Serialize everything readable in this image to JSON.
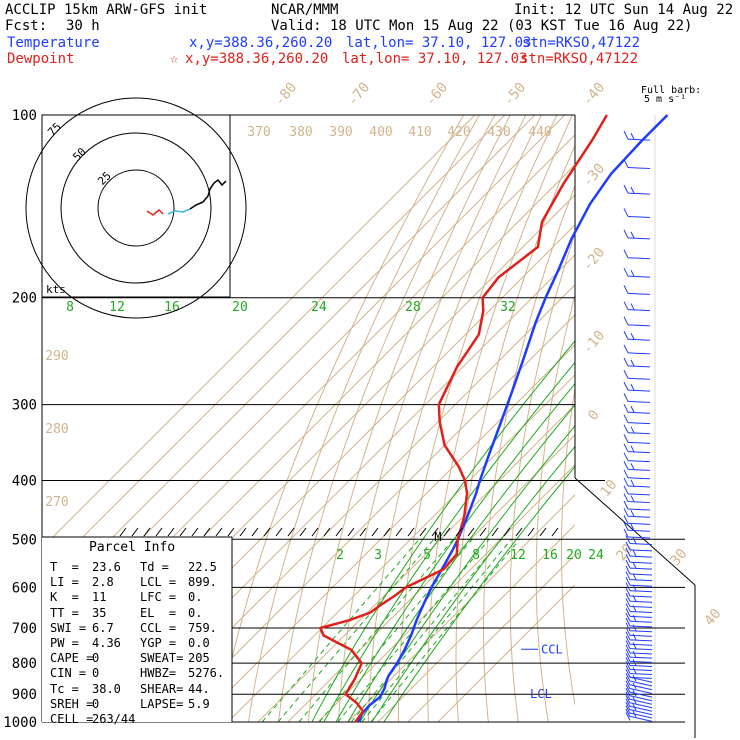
{
  "header": {
    "model": "ACCLIP 15km ARW-GFS init",
    "center": "NCAR/MMM",
    "init": "Init: 12 UTC Sun 14 Aug 22",
    "fcst_label": "Fcst:",
    "fcst_value": "30 h",
    "valid": "Valid: 18 UTC Mon 15 Aug 22 (03 KST Tue 16 Aug 22)"
  },
  "legend": {
    "temperature_label": "Temperature",
    "temperature_xy": "x,y=388.36,260.20",
    "temperature_latlon": "lat,lon= 37.10, 127.03",
    "temperature_stn": "stn=RKSO,47122",
    "dewpoint_label": "Dewpoint",
    "dewpoint_xy": "x,y=388.36,260.20",
    "dewpoint_latlon": "lat,lon= 37.10, 127.03",
    "dewpoint_stn": "stn=RKSO,47122",
    "star": "☆"
  },
  "wind_key": {
    "line1": "Full barb:",
    "line2": "5 m s⁻¹"
  },
  "hodograph": {
    "units": "kts",
    "rings": [
      "75",
      "50",
      "25"
    ]
  },
  "parcel_info": {
    "title": "Parcel Info",
    "rows": [
      [
        "T  =",
        "23.6",
        "Td =",
        "22.5"
      ],
      [
        "LI =",
        "2.8",
        "LCL =",
        "899."
      ],
      [
        "K  =",
        "11",
        "LFC =",
        "0."
      ],
      [
        "TT =",
        "35",
        "EL  =",
        "0."
      ],
      [
        "SWI =",
        "6.7",
        "CCL =",
        "759."
      ],
      [
        "PW =",
        "4.36",
        "YGP =",
        "0.0"
      ],
      [
        "CAPE =",
        "0",
        "SWEAT=",
        "205"
      ],
      [
        "CIN =",
        "0",
        "HWBZ=",
        "5276."
      ],
      [
        "Tc =",
        "38.0",
        "SHEAR=",
        "44."
      ],
      [
        "SREH =",
        "0",
        "LAPSE=",
        "5.9"
      ],
      [
        "CELL =",
        "263/44",
        "",
        ""
      ]
    ]
  },
  "chart_data": {
    "type": "line",
    "title": "",
    "y_axis": "pressure (hPa)",
    "pressure_ticks": [
      100,
      200,
      300,
      400,
      500,
      600,
      700,
      800,
      900,
      1000
    ],
    "isotherm_labels": [
      "-80",
      "-70",
      "-60",
      "-50",
      "-40",
      "-30",
      "-20",
      "-10",
      "0",
      "10",
      "20",
      "30",
      "40"
    ],
    "theta_labels": [
      "370",
      "380",
      "390",
      "400",
      "410",
      "420",
      "430",
      "440",
      "290",
      "280",
      "270"
    ],
    "moist_adiabat_labels": [
      "8",
      "12",
      "16",
      "20",
      "24",
      "28",
      "32"
    ],
    "mixing_ratio_labels": [
      "2",
      "3",
      "5",
      "8",
      "12",
      "16",
      "20",
      "24"
    ],
    "annotations": [
      "CCL",
      "LCL",
      "M"
    ],
    "series": [
      {
        "name": "Temperature",
        "color": "#1e3cff",
        "pressure": [
          1000,
          970,
          940,
          910,
          880,
          860,
          840,
          800,
          760,
          720,
          680,
          640,
          600,
          560,
          520,
          500,
          460,
          420,
          400,
          360,
          320,
          280,
          250,
          220,
          200,
          180,
          160,
          140,
          125,
          110,
          100
        ],
        "value": [
          23.6,
          22.0,
          21.6,
          22.4,
          21.0,
          19.5,
          18.2,
          16.8,
          14.8,
          12.2,
          9.0,
          6.0,
          3.0,
          0.4,
          -2.5,
          -4.2,
          -8.5,
          -13.5,
          -16.5,
          -22.5,
          -29.0,
          -36.5,
          -43.0,
          -50.5,
          -55.5,
          -60.5,
          -66.5,
          -72.0,
          -75.0,
          -75.8,
          -75.8
        ]
      },
      {
        "name": "Dewpoint",
        "color": "#e0201a",
        "pressure": [
          1000,
          960,
          930,
          900,
          850,
          800,
          760,
          740,
          720,
          700,
          680,
          660,
          640,
          620,
          600,
          560,
          530,
          500,
          460,
          420,
          400,
          380,
          350,
          320,
          300,
          260,
          230,
          210,
          200,
          185,
          165,
          150,
          130,
          110,
          100
        ],
        "value": [
          22.5,
          21.5,
          16.5,
          10.0,
          8.0,
          5.0,
          -3.0,
          -10.0,
          -17.0,
          -20.5,
          -13.5,
          -9.0,
          -8.0,
          -6.5,
          -5.5,
          1.0,
          0.5,
          -4.3,
          -9.5,
          -16.5,
          -21.5,
          -28.0,
          -40.0,
          -49.5,
          -55.5,
          -62.0,
          -65.5,
          -72.0,
          -76.5,
          -78.0,
          -75.0,
          -82.0,
          -87.5,
          -92.5,
          -96.0
        ]
      }
    ],
    "hodograph": {
      "ring_speeds_kts": [
        25,
        50,
        75
      ]
    },
    "parcel_curve": {
      "pressure": [
        1000,
        900,
        850,
        800,
        750,
        700,
        650,
        600
      ],
      "value": [
        23.6,
        20.0,
        16.8,
        14.0,
        10.8,
        7.5,
        3.6,
        -0.5
      ]
    }
  }
}
